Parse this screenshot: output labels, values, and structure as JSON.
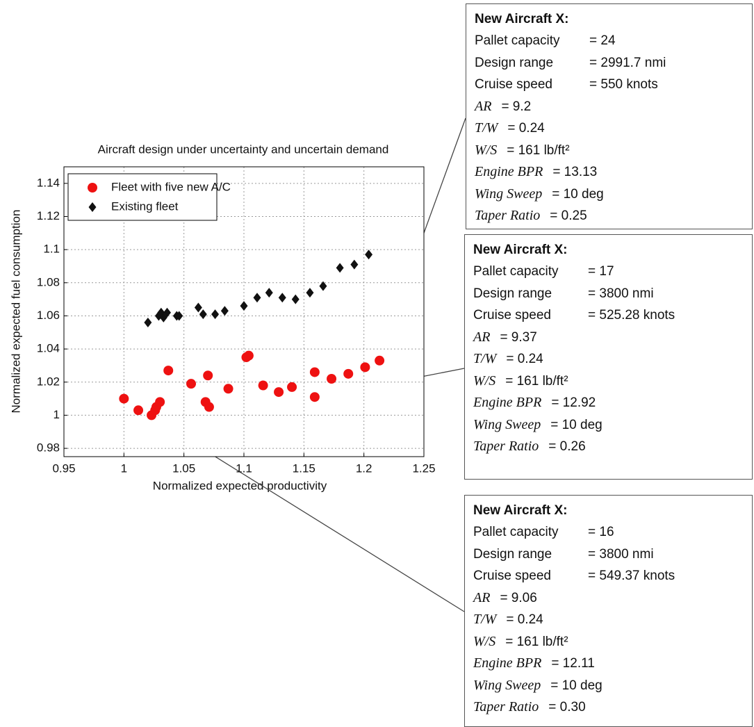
{
  "chart_data": {
    "type": "scatter",
    "title": "Aircraft design under uncertainty and uncertain demand",
    "xlabel": "Normalized expected  productivity",
    "ylabel": "Normalized expected fuel consumption",
    "xlim": [
      0.95,
      1.25
    ],
    "xticks": [
      0.95,
      1,
      1.05,
      1.1,
      1.15,
      1.2,
      1.25
    ],
    "ylim": [
      0.975,
      1.15
    ],
    "yticks": [
      0.98,
      1,
      1.02,
      1.04,
      1.06,
      1.08,
      1.1,
      1.12,
      1.14
    ],
    "grid": true,
    "legend": "upper left",
    "series": [
      {
        "name": "Fleet with five new A/C",
        "color": "#ee1111",
        "marker": "circle",
        "x": [
          1.0,
          1.012,
          1.023,
          1.026,
          1.027,
          1.03,
          1.037,
          1.056,
          1.07,
          1.068,
          1.071,
          1.087,
          1.102,
          1.104,
          1.116,
          1.129,
          1.14,
          1.159,
          1.159,
          1.173,
          1.187,
          1.201,
          1.213
        ],
        "y": [
          1.01,
          1.003,
          1.0,
          1.003,
          1.005,
          1.008,
          1.027,
          1.019,
          1.024,
          1.008,
          1.005,
          1.016,
          1.035,
          1.036,
          1.018,
          1.014,
          1.017,
          1.026,
          1.011,
          1.022,
          1.025,
          1.029,
          1.033
        ]
      },
      {
        "name": "Existing fleet",
        "color": "#111111",
        "marker": "diamond",
        "x": [
          1.02,
          1.029,
          1.031,
          1.033,
          1.036,
          1.044,
          1.046,
          1.062,
          1.066,
          1.076,
          1.084,
          1.1,
          1.111,
          1.121,
          1.132,
          1.143,
          1.155,
          1.166,
          1.18,
          1.192,
          1.204
        ],
        "y": [
          1.056,
          1.06,
          1.062,
          1.059,
          1.062,
          1.06,
          1.06,
          1.065,
          1.061,
          1.061,
          1.063,
          1.066,
          1.071,
          1.074,
          1.071,
          1.07,
          1.074,
          1.078,
          1.089,
          1.091,
          1.097
        ]
      }
    ]
  },
  "annotations": [
    {
      "title": "New Aircraft X:",
      "rows": [
        [
          "Pallet capacity",
          "= 24"
        ],
        [
          "Design range",
          "= 2991.7 nmi"
        ],
        [
          "Cruise speed",
          "= 550 knots"
        ],
        [
          "AR",
          "= 9.2"
        ],
        [
          "T/W",
          "= 0.24"
        ],
        [
          "W/S",
          "= 161 lb/ft²"
        ],
        [
          "Engine BPR",
          "= 13.13"
        ],
        [
          "Wing Sweep",
          "= 10 deg"
        ],
        [
          "Taper Ratio",
          "= 0.25"
        ]
      ]
    },
    {
      "title": "New Aircraft X:",
      "rows": [
        [
          "Pallet capacity",
          "= 17"
        ],
        [
          "Design range",
          "= 3800 nmi"
        ],
        [
          "Cruise speed",
          "= 525.28 knots"
        ],
        [
          "AR",
          "= 9.37"
        ],
        [
          "T/W",
          "= 0.24"
        ],
        [
          "W/S",
          "= 161 lb/ft²"
        ],
        [
          "Engine BPR",
          "= 12.92"
        ],
        [
          "Wing Sweep",
          "= 10 deg"
        ],
        [
          "Taper Ratio",
          "= 0.26"
        ]
      ]
    },
    {
      "title": "New Aircraft X:",
      "rows": [
        [
          "Pallet capacity",
          "= 16"
        ],
        [
          "Design range",
          "= 3800 nmi"
        ],
        [
          "Cruise speed",
          "= 549.37 knots"
        ],
        [
          "AR",
          "= 9.06"
        ],
        [
          "T/W",
          "= 0.24"
        ],
        [
          "W/S",
          "= 161 lb/ft²"
        ],
        [
          "Engine BPR",
          "= 12.11"
        ],
        [
          "Wing Sweep",
          "= 10 deg"
        ],
        [
          "Taper Ratio",
          "= 0.30"
        ]
      ]
    }
  ]
}
